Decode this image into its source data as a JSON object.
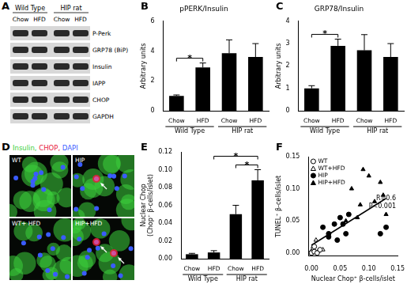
{
  "panel_labels": [
    "A",
    "B",
    "C",
    "D",
    "E",
    "F"
  ],
  "blot": {
    "groups": [
      "Wild Type",
      "HIP rat"
    ],
    "lanes": [
      "Chow",
      "HFD",
      "Chow",
      "HFD"
    ],
    "rows": [
      "P-Perk",
      "GRP78 (BiP)",
      "Insulin",
      "IAPP",
      "CHOP",
      "GAPDH"
    ]
  },
  "micrograph": {
    "stains": [
      {
        "text": "Insulin,",
        "color": "#3ccf3c"
      },
      {
        "text": "CHOP,",
        "color": "#e8203a"
      },
      {
        "text": "DAPI",
        "color": "#3a5cff"
      }
    ],
    "panels": [
      "WT",
      "HIP",
      "WT+ HFD",
      "HIP+HFD"
    ]
  },
  "chart_data": [
    {
      "type": "bar",
      "title": "pPERK/Insulin",
      "y_label": "Arbitrary units",
      "categories": [
        "Chow",
        "HFD",
        "Chow",
        "HFD"
      ],
      "group_labels": [
        "Wild Type",
        "HIP rat"
      ],
      "values": [
        1.0,
        2.9,
        3.85,
        3.6
      ],
      "errors": [
        0.06,
        0.3,
        0.9,
        0.9
      ],
      "color": "#000000",
      "ylim": [
        0,
        6
      ],
      "yticks": [
        0,
        2,
        4,
        6
      ],
      "grid": false,
      "annotations": [
        {
          "text": "*",
          "from": 0,
          "to": 1
        }
      ]
    },
    {
      "type": "bar",
      "title": "GRP78/Insulin",
      "y_label": "Arbitrary units",
      "categories": [
        "Chow",
        "HFD",
        "Chow",
        "HFD"
      ],
      "group_labels": [
        "Wild Type",
        "HIP rat"
      ],
      "values": [
        1.0,
        2.9,
        2.7,
        2.4
      ],
      "errors": [
        0.12,
        0.3,
        0.7,
        0.6
      ],
      "color": "#000000",
      "ylim": [
        0,
        4
      ],
      "yticks": [
        0,
        1,
        2,
        3,
        4
      ],
      "grid": false,
      "annotations": [
        {
          "text": "*",
          "from": 0,
          "to": 1
        }
      ]
    },
    {
      "type": "bar",
      "y_label": [
        "Nuclear Chop",
        "(Chop⁺ β-cells/islet)"
      ],
      "categories": [
        "Chow",
        "HFD",
        "Chow",
        "HFD"
      ],
      "group_labels": [
        "Wild Type",
        "HIP rat"
      ],
      "values": [
        0.005,
        0.007,
        0.05,
        0.088
      ],
      "errors": [
        0.001,
        0.002,
        0.01,
        0.012
      ],
      "color": "#000000",
      "ylim": [
        0,
        0.12
      ],
      "yticks": [
        {
          "value": 0,
          "label": "0.00"
        },
        {
          "value": 0.02,
          "label": "0.02"
        },
        {
          "value": 0.04,
          "label": "0.04"
        },
        {
          "value": 0.06,
          "label": "0.06"
        },
        {
          "value": 0.08,
          "label": "0.08"
        },
        {
          "value": 0.1,
          "label": "0.10"
        },
        {
          "value": 0.12,
          "label": "0.12"
        }
      ],
      "grid": false,
      "annotations": [
        {
          "text": "*",
          "from": 2,
          "to": 3
        },
        {
          "text": "*",
          "from": 1,
          "to": 3
        }
      ]
    },
    {
      "type": "scatter",
      "x_label": "Nuclear Chop⁺ β-cells/islet",
      "y_label": "TUNEL⁺ β-cells/islet",
      "xlim": [
        -0.005,
        0.15
      ],
      "ylim": [
        -0.005,
        0.15
      ],
      "xticks": [
        {
          "value": 0,
          "label": "0.00"
        },
        {
          "value": 0.05,
          "label": "0.05"
        },
        {
          "value": 0.1,
          "label": "0.10"
        },
        {
          "value": 0.15,
          "label": "0.15"
        }
      ],
      "yticks": [
        {
          "value": 0,
          "label": "0.00"
        },
        {
          "value": 0.05,
          "label": "0.05"
        },
        {
          "value": 0.1,
          "label": "0.10"
        },
        {
          "value": 0.15,
          "label": "0.15"
        }
      ],
      "grid": false,
      "legend": "top-left",
      "annotations": [
        "R=0.6",
        "P<0.001"
      ],
      "series": [
        {
          "name": "WT",
          "marker": "circle-open",
          "color": "#000000",
          "x": [
            0,
            0.005,
            0.01,
            0.015,
            0.005
          ],
          "y": [
            0,
            0.002,
            0,
            0.005,
            0.01
          ]
        },
        {
          "name": "WT+HFD",
          "marker": "triangle-open",
          "color": "#000000",
          "x": [
            0,
            0.003,
            0.008,
            0.012,
            0.02
          ],
          "y": [
            0.003,
            0.01,
            0.02,
            0.003,
            0.005
          ]
        },
        {
          "name": "HIP",
          "marker": "circle",
          "color": "#000000",
          "x": [
            0.02,
            0.03,
            0.04,
            0.05,
            0.06,
            0.065,
            0.045,
            0.03,
            0.055,
            0.12,
            0.13
          ],
          "y": [
            0.04,
            0.03,
            0.045,
            0.055,
            0.03,
            0.06,
            0.02,
            0.025,
            0.045,
            0.03,
            0.04
          ]
        },
        {
          "name": "HIP+HFD",
          "marker": "triangle",
          "color": "#000000",
          "x": [
            0.07,
            0.085,
            0.09,
            0.1,
            0.11,
            0.12,
            0.125,
            0.06,
            0.13,
            0.08
          ],
          "y": [
            0.1,
            0.075,
            0.13,
            0.12,
            0.08,
            0.11,
            0.09,
            0.05,
            0.06,
            0.055
          ]
        },
        {
          "type": "line",
          "line_style": "solid",
          "color": "#000000",
          "x": [
            0,
            0.13
          ],
          "y": [
            0.012,
            0.085
          ]
        }
      ]
    }
  ]
}
